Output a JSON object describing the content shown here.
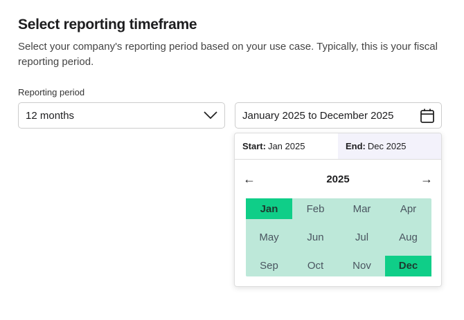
{
  "title": "Select reporting timeframe",
  "description": "Select your company's reporting period based on your use case. Typically, this is your fiscal reporting period.",
  "period_label": "Reporting period",
  "period_value": "12 months",
  "range_value": "January 2025 to December 2025",
  "picker": {
    "start_label": "Start:",
    "start_value": "Jan 2025",
    "end_label": "End:",
    "end_value": "Dec 2025",
    "year": "2025",
    "months": [
      "Jan",
      "Feb",
      "Mar",
      "Apr",
      "May",
      "Jun",
      "Jul",
      "Aug",
      "Sep",
      "Oct",
      "Nov",
      "Dec"
    ],
    "selected": [
      "Jan",
      "Dec"
    ]
  },
  "colors": {
    "range": "#bde8d9",
    "selected": "#0fce88",
    "end_tab": "#f3f2fb"
  }
}
